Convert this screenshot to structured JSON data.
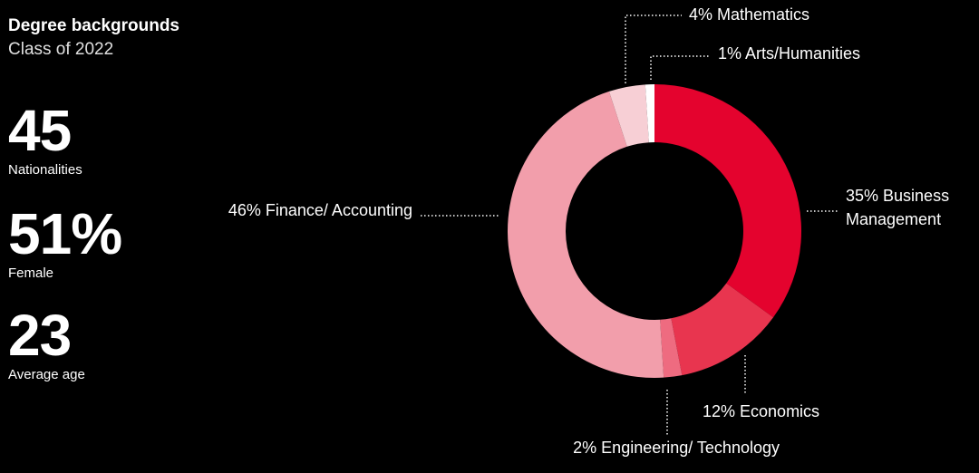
{
  "header": {
    "title": "Degree backgrounds",
    "subtitle": "Class of 2022"
  },
  "stats": [
    {
      "value": "45",
      "label": "Nationalities"
    },
    {
      "value": "51%",
      "label": "Female"
    },
    {
      "value": "23",
      "label": "Average age"
    }
  ],
  "chart_data": {
    "type": "pie",
    "donut": true,
    "title": "Degree backgrounds",
    "subtitle": "Class of 2022",
    "slices": [
      {
        "label": "Business Management",
        "value": 35,
        "display": [
          "35% Business",
          "Management"
        ],
        "color": "#e4032e"
      },
      {
        "label": "Economics",
        "value": 12,
        "display": [
          "12% Economics"
        ],
        "color": "#e8354f"
      },
      {
        "label": "Engineering/ Technology",
        "value": 2,
        "display": [
          "2% Engineering/ Technology"
        ],
        "color": "#ee6b80"
      },
      {
        "label": "Finance/ Accounting",
        "value": 46,
        "display": [
          "46% Finance/ Accounting"
        ],
        "color": "#f29eab"
      },
      {
        "label": "Mathematics",
        "value": 4,
        "display": [
          "4% Mathematics"
        ],
        "color": "#f7cfd5"
      },
      {
        "label": "Arts/Humanities",
        "value": 1,
        "display": [
          "1% Arts/Humanities"
        ],
        "color": "#ffffff"
      }
    ]
  }
}
